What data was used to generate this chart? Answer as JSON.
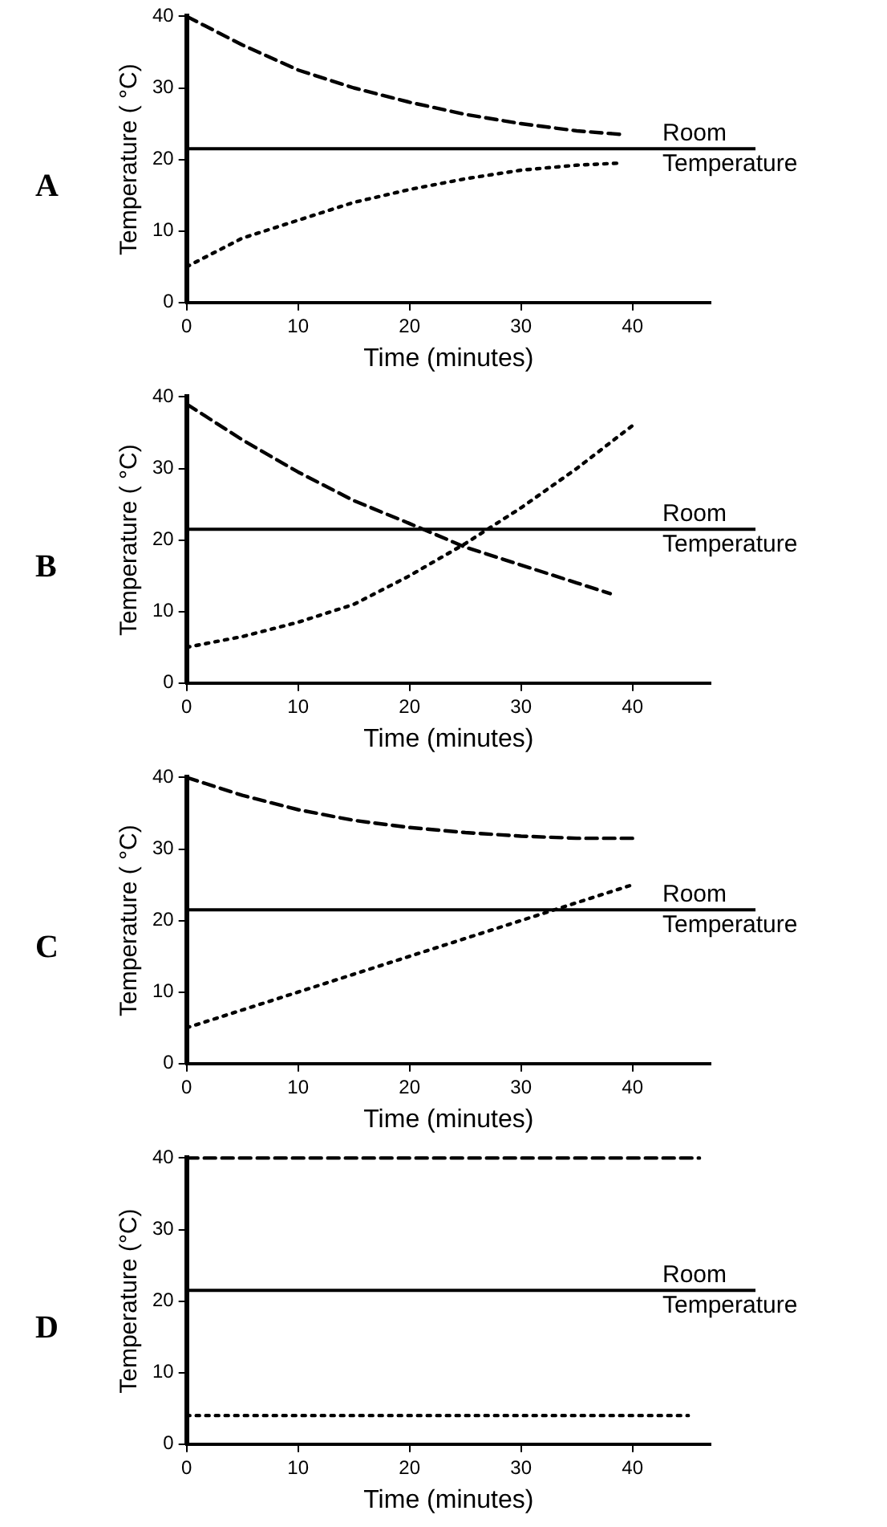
{
  "chart_data": [
    {
      "type": "line",
      "title": "A",
      "xlabel": "Time (minutes)",
      "ylabel": "Temperature ( °C)",
      "xlim": [
        0,
        47
      ],
      "xticks": [
        0,
        10,
        20,
        30,
        40
      ],
      "ylim": [
        0,
        40
      ],
      "yticks": [
        0,
        10,
        20,
        30,
        40
      ],
      "grid": false,
      "marker": "none",
      "series": [
        {
          "color": "#000000",
          "line_style": "dashed",
          "x": [
            0,
            5,
            10,
            15,
            20,
            25,
            30,
            35,
            39
          ],
          "values": [
            40,
            36,
            32.5,
            30,
            28,
            26.3,
            25,
            24,
            23.5
          ]
        },
        {
          "color": "#000000",
          "line_style": "dotted",
          "x": [
            0,
            5,
            10,
            15,
            20,
            25,
            30,
            35,
            39
          ],
          "values": [
            5,
            9,
            11.5,
            14,
            15.8,
            17.3,
            18.5,
            19.2,
            19.5
          ]
        }
      ],
      "ref_lines": [
        {
          "axis": "y",
          "value": 21.5,
          "label": "Room Temperature",
          "color": "#000000",
          "line_style": "solid"
        }
      ]
    },
    {
      "type": "line",
      "title": "B",
      "xlabel": "Time (minutes)",
      "ylabel": "Temperature ( °C)",
      "xlim": [
        0,
        47
      ],
      "xticks": [
        0,
        10,
        20,
        30,
        40
      ],
      "ylim": [
        0,
        40
      ],
      "yticks": [
        0,
        10,
        20,
        30,
        40
      ],
      "grid": false,
      "marker": "none",
      "series": [
        {
          "color": "#000000",
          "line_style": "dashed",
          "x": [
            0,
            5,
            10,
            15,
            20,
            25,
            30,
            35,
            38
          ],
          "values": [
            39,
            34,
            29.5,
            25.5,
            22.3,
            19,
            16.5,
            14,
            12.5
          ]
        },
        {
          "color": "#000000",
          "line_style": "dotted",
          "x": [
            0,
            5,
            10,
            15,
            20,
            25,
            30,
            35,
            40
          ],
          "values": [
            5,
            6.5,
            8.5,
            11,
            15,
            19.5,
            24.5,
            30,
            36
          ]
        }
      ],
      "ref_lines": [
        {
          "axis": "y",
          "value": 21.5,
          "label": "Room Temperature",
          "color": "#000000",
          "line_style": "solid"
        }
      ]
    },
    {
      "type": "line",
      "title": "C",
      "xlabel": "Time (minutes)",
      "ylabel": "Temperature ( °C)",
      "xlim": [
        0,
        47
      ],
      "xticks": [
        0,
        10,
        20,
        30,
        40
      ],
      "ylim": [
        0,
        40
      ],
      "yticks": [
        0,
        10,
        20,
        30,
        40
      ],
      "grid": false,
      "marker": "none",
      "series": [
        {
          "color": "#000000",
          "line_style": "dashed",
          "x": [
            0,
            5,
            10,
            15,
            20,
            25,
            30,
            35,
            40
          ],
          "values": [
            40,
            37.5,
            35.5,
            34,
            33,
            32.3,
            31.8,
            31.5,
            31.5
          ]
        },
        {
          "color": "#000000",
          "line_style": "dotted",
          "x": [
            0,
            10,
            20,
            30,
            35,
            40
          ],
          "values": [
            5,
            10,
            15,
            20,
            22.5,
            25
          ]
        }
      ],
      "ref_lines": [
        {
          "axis": "y",
          "value": 21.5,
          "label": "Room Temperature",
          "color": "#000000",
          "line_style": "solid"
        }
      ]
    },
    {
      "type": "line",
      "title": "D",
      "xlabel": "Time (minutes)",
      "ylabel": "Temperature (°C)",
      "xlim": [
        0,
        47
      ],
      "xticks": [
        0,
        10,
        20,
        30,
        40
      ],
      "ylim": [
        0,
        40
      ],
      "yticks": [
        0,
        10,
        20,
        30,
        40
      ],
      "grid": false,
      "marker": "none",
      "series": [
        {
          "color": "#000000",
          "line_style": "dashed",
          "x": [
            0,
            46
          ],
          "values": [
            40,
            40
          ]
        },
        {
          "color": "#000000",
          "line_style": "dotted",
          "x": [
            0,
            45
          ],
          "values": [
            4,
            4
          ]
        }
      ],
      "ref_lines": [
        {
          "axis": "y",
          "value": 21.5,
          "label": "Room Temperature",
          "color": "#000000",
          "line_style": "solid"
        }
      ]
    }
  ]
}
